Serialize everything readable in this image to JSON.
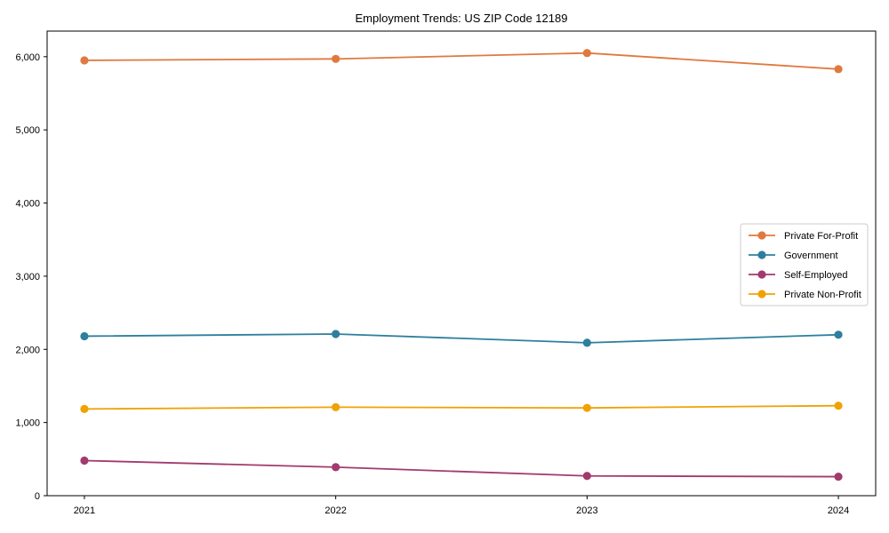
{
  "page": {
    "background": "#ffffff"
  },
  "chart_data": {
    "type": "line",
    "title": "Employment Trends: US ZIP Code 12189",
    "categories": [
      "2021",
      "2022",
      "2023",
      "2024"
    ],
    "series": [
      {
        "name": "Private For-Profit",
        "color": "#e0793e",
        "values": [
          5950,
          5970,
          6050,
          5830
        ]
      },
      {
        "name": "Government",
        "color": "#2e7f9e",
        "values": [
          2180,
          2210,
          2090,
          2200
        ]
      },
      {
        "name": "Self-Employed",
        "color": "#a23a6e",
        "values": [
          480,
          390,
          270,
          260
        ]
      },
      {
        "name": "Private Non-Profit",
        "color": "#f0a202",
        "values": [
          1185,
          1210,
          1200,
          1230
        ]
      }
    ],
    "xlabel": "",
    "ylabel": "",
    "ylim": [
      0,
      6350
    ],
    "yticks": {
      "values": [
        0,
        1000,
        2000,
        3000,
        4000,
        5000,
        6000
      ],
      "labels": [
        "0",
        "1,000",
        "2,000",
        "3,000",
        "4,000",
        "5,000",
        "6,000"
      ]
    },
    "grid": false,
    "marker": "circle",
    "legend": {
      "position": "center-right",
      "border_color": "#cccccc",
      "background": "#ffffff",
      "entries": [
        "Private For-Profit",
        "Government",
        "Self-Employed",
        "Private Non-Profit"
      ]
    },
    "axis_color": "#000000"
  }
}
